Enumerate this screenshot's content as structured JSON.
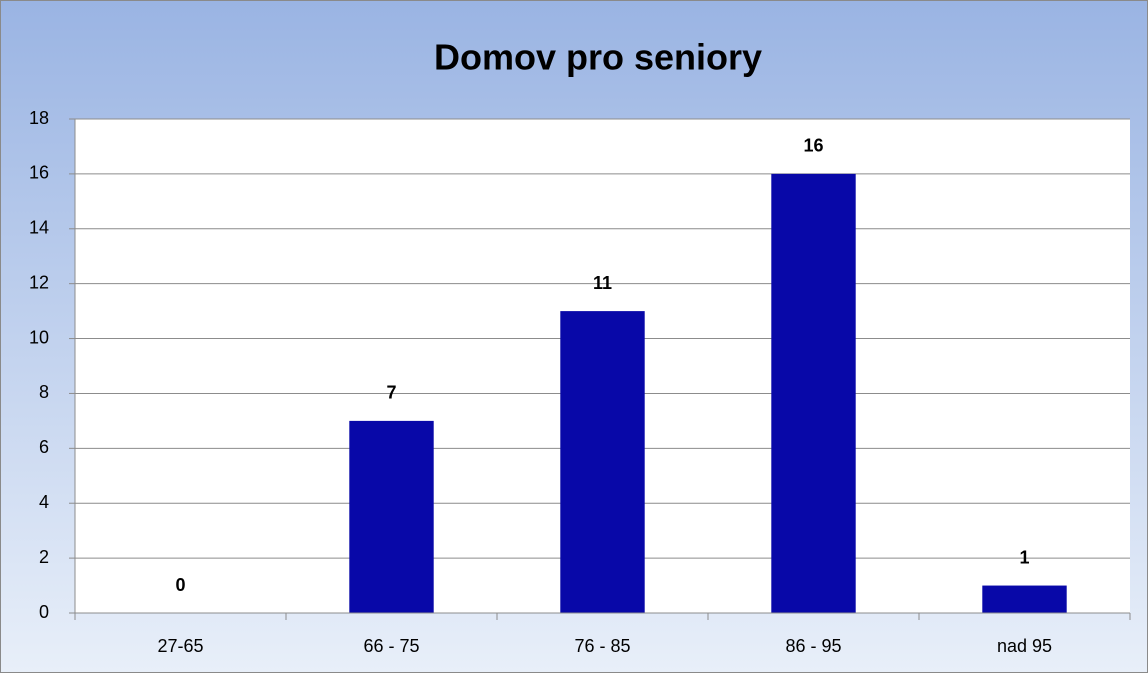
{
  "chart_data": {
    "type": "bar",
    "title": "Domov pro seniory",
    "categories": [
      "27-65",
      "66 - 75",
      "76 - 85",
      "86 - 95",
      "nad 95"
    ],
    "values": [
      0,
      7,
      11,
      16,
      1
    ],
    "color": "#0808a8",
    "ylim": [
      0,
      18
    ],
    "yticks": [
      0,
      2,
      4,
      6,
      8,
      10,
      12,
      14,
      16,
      18
    ],
    "grid": true
  }
}
